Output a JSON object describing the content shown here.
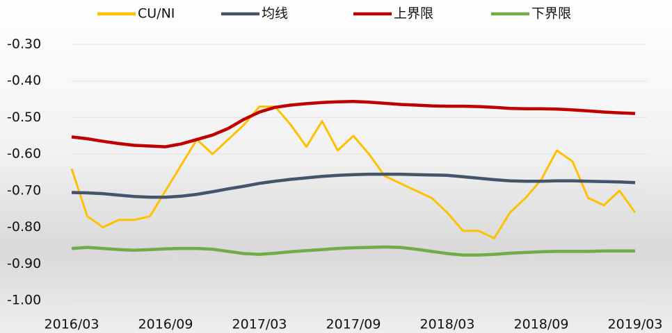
{
  "chart_data": {
    "type": "line",
    "categories": [
      "2016/03",
      null,
      null,
      null,
      null,
      null,
      "2016/09",
      null,
      null,
      null,
      null,
      null,
      "2017/03",
      null,
      null,
      null,
      null,
      null,
      "2017/09",
      null,
      null,
      null,
      null,
      null,
      "2018/03",
      null,
      null,
      null,
      null,
      null,
      "2018/09",
      null,
      null,
      null,
      null,
      null,
      "2019/03"
    ],
    "series": [
      {
        "name": "CU/NI",
        "color": "#ffc000",
        "values": [
          -0.64,
          -0.77,
          -0.8,
          -0.78,
          -0.78,
          -0.77,
          -0.7,
          -0.63,
          -0.56,
          -0.6,
          -0.56,
          -0.52,
          -0.47,
          -0.47,
          -0.52,
          -0.58,
          -0.51,
          -0.59,
          -0.55,
          -0.6,
          -0.66,
          -0.68,
          -0.7,
          -0.72,
          -0.76,
          -0.81,
          -0.81,
          -0.83,
          -0.76,
          -0.72,
          -0.67,
          -0.59,
          -0.62,
          -0.72,
          -0.74,
          -0.7,
          -0.76
        ]
      },
      {
        "name": "均线",
        "color": "#44546a",
        "values": [
          -0.705,
          -0.706,
          -0.708,
          -0.712,
          -0.716,
          -0.718,
          -0.718,
          -0.715,
          -0.71,
          -0.703,
          -0.695,
          -0.688,
          -0.68,
          -0.674,
          -0.669,
          -0.665,
          -0.661,
          -0.658,
          -0.656,
          -0.655,
          -0.655,
          -0.655,
          -0.656,
          -0.657,
          -0.658,
          -0.662,
          -0.666,
          -0.67,
          -0.673,
          -0.674,
          -0.674,
          -0.673,
          -0.673,
          -0.674,
          -0.675,
          -0.676,
          -0.678
        ]
      },
      {
        "name": "上界限",
        "color": "#c00000",
        "values": [
          -0.553,
          -0.558,
          -0.565,
          -0.571,
          -0.576,
          -0.578,
          -0.58,
          -0.572,
          -0.56,
          -0.548,
          -0.53,
          -0.505,
          -0.485,
          -0.472,
          -0.466,
          -0.462,
          -0.459,
          -0.457,
          -0.456,
          -0.458,
          -0.461,
          -0.464,
          -0.466,
          -0.468,
          -0.469,
          -0.469,
          -0.47,
          -0.472,
          -0.475,
          -0.476,
          -0.476,
          -0.477,
          -0.479,
          -0.482,
          -0.485,
          -0.487,
          -0.489
        ]
      },
      {
        "name": "下界限",
        "color": "#70ad47",
        "values": [
          -0.858,
          -0.855,
          -0.858,
          -0.861,
          -0.863,
          -0.861,
          -0.859,
          -0.858,
          -0.858,
          -0.86,
          -0.866,
          -0.872,
          -0.874,
          -0.871,
          -0.867,
          -0.864,
          -0.861,
          -0.858,
          -0.856,
          -0.855,
          -0.854,
          -0.855,
          -0.86,
          -0.866,
          -0.872,
          -0.876,
          -0.876,
          -0.874,
          -0.871,
          -0.869,
          -0.867,
          -0.866,
          -0.866,
          -0.866,
          -0.865,
          -0.865,
          -0.865
        ]
      }
    ],
    "ylim": [
      -1.0,
      -0.3
    ],
    "yticks": [
      {
        "value": -1.0,
        "label": "-1.00"
      },
      {
        "value": -0.9,
        "label": "-0.90"
      },
      {
        "value": -0.8,
        "label": "-0.80"
      },
      {
        "value": -0.7,
        "label": "-0.70"
      },
      {
        "value": -0.6,
        "label": "-0.60"
      },
      {
        "value": -0.5,
        "label": "-0.50"
      },
      {
        "value": -0.4,
        "label": "-0.40"
      },
      {
        "value": -0.3,
        "label": "-0.30"
      }
    ],
    "grid": true,
    "legend": "top"
  }
}
